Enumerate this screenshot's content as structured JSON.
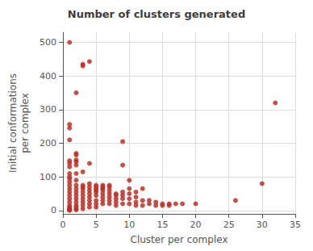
{
  "chart_data": {
    "type": "scatter",
    "title": "Number of clusters generated",
    "xlabel": "Cluster per complex",
    "ylabel": "Initial conformations\nper complex",
    "color": "#b5342a",
    "xlim": [
      0,
      35
    ],
    "ylim": [
      -10,
      530
    ],
    "xticks": [
      0,
      5,
      10,
      15,
      20,
      25,
      30,
      35
    ],
    "yticks": [
      0,
      100,
      200,
      300,
      400,
      500
    ],
    "grid": true,
    "x": [
      1,
      1,
      1,
      1,
      1,
      1,
      1,
      1,
      1,
      1,
      1,
      1,
      1,
      1,
      1,
      1,
      1,
      1,
      1,
      1,
      1,
      1,
      1,
      1,
      2,
      2,
      2,
      2,
      2,
      2,
      2,
      2,
      2,
      2,
      2,
      2,
      2,
      2,
      2,
      2,
      2,
      2,
      3,
      3,
      3,
      3,
      3,
      3,
      3,
      3,
      3,
      3,
      3,
      3,
      4,
      4,
      4,
      4,
      4,
      4,
      4,
      4,
      4,
      4,
      5,
      5,
      5,
      5,
      5,
      5,
      5,
      5,
      5,
      6,
      6,
      6,
      6,
      6,
      6,
      6,
      6,
      7,
      7,
      7,
      7,
      7,
      7,
      7,
      8,
      8,
      8,
      8,
      8,
      9,
      9,
      9,
      9,
      9,
      9,
      10,
      10,
      10,
      10,
      10,
      11,
      11,
      11,
      11,
      12,
      12,
      12,
      13,
      13,
      14,
      14,
      15,
      15,
      16,
      16,
      17,
      18,
      20,
      26,
      30,
      32
    ],
    "values": [
      500,
      148,
      140,
      130,
      110,
      100,
      95,
      85,
      75,
      65,
      55,
      45,
      35,
      25,
      15,
      10,
      5,
      3,
      2,
      1,
      1,
      210,
      245,
      256,
      350,
      170,
      165,
      150,
      145,
      135,
      110,
      90,
      75,
      65,
      55,
      45,
      35,
      25,
      15,
      10,
      5,
      2,
      435,
      430,
      115,
      75,
      70,
      65,
      55,
      45,
      35,
      25,
      15,
      5,
      443,
      140,
      80,
      70,
      60,
      50,
      40,
      30,
      20,
      10,
      75,
      70,
      65,
      60,
      55,
      45,
      30,
      20,
      10,
      75,
      70,
      65,
      60,
      50,
      40,
      30,
      20,
      75,
      70,
      60,
      50,
      40,
      30,
      20,
      50,
      45,
      35,
      25,
      15,
      205,
      135,
      55,
      45,
      35,
      20,
      90,
      65,
      50,
      35,
      20,
      55,
      40,
      25,
      15,
      65,
      30,
      15,
      30,
      20,
      25,
      15,
      20,
      15,
      20,
      15,
      20,
      20,
      20,
      30,
      80,
      320
    ]
  }
}
